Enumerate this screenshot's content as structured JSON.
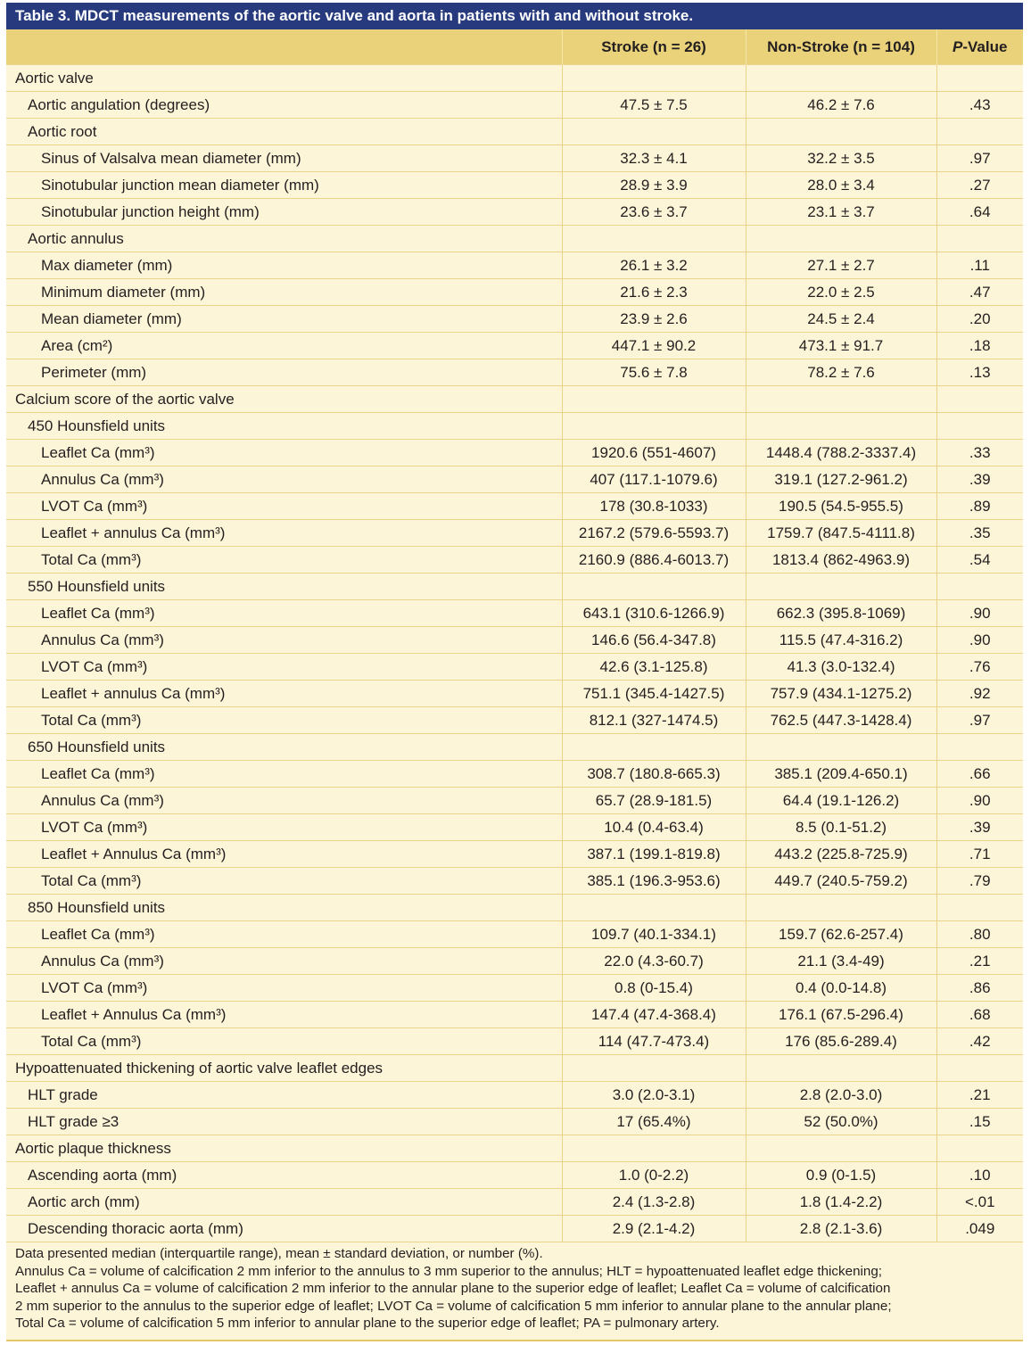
{
  "title": "Table 3. MDCT measurements of the aortic valve and aorta in patients with and without stroke.",
  "header": {
    "col1": "",
    "col2": "Stroke (n = 26)",
    "col3": "Non-Stroke (n = 104)",
    "col4_italic": "P",
    "col4_rest": "-Value"
  },
  "rows": [
    {
      "level": 0,
      "label": "Aortic valve",
      "stroke": "",
      "nonstroke": "",
      "p": ""
    },
    {
      "level": 1,
      "label": "Aortic angulation (degrees)",
      "stroke": "47.5 ± 7.5",
      "nonstroke": "46.2 ± 7.6",
      "p": ".43"
    },
    {
      "level": 1,
      "label": "Aortic root",
      "stroke": "",
      "nonstroke": "",
      "p": ""
    },
    {
      "level": 2,
      "label": "Sinus of Valsalva mean diameter (mm)",
      "stroke": "32.3 ± 4.1",
      "nonstroke": "32.2 ± 3.5",
      "p": ".97"
    },
    {
      "level": 2,
      "label": "Sinotubular junction mean diameter (mm)",
      "stroke": "28.9 ± 3.9",
      "nonstroke": "28.0 ± 3.4",
      "p": ".27"
    },
    {
      "level": 2,
      "label": "Sinotubular junction height (mm)",
      "stroke": "23.6 ± 3.7",
      "nonstroke": "23.1 ± 3.7",
      "p": ".64"
    },
    {
      "level": 1,
      "label": "Aortic annulus",
      "stroke": "",
      "nonstroke": "",
      "p": ""
    },
    {
      "level": 2,
      "label": "Max diameter (mm)",
      "stroke": "26.1 ± 3.2",
      "nonstroke": "27.1 ± 2.7",
      "p": ".11"
    },
    {
      "level": 2,
      "label": "Minimum diameter (mm)",
      "stroke": "21.6 ± 2.3",
      "nonstroke": "22.0 ± 2.5",
      "p": ".47"
    },
    {
      "level": 2,
      "label": "Mean diameter (mm)",
      "stroke": "23.9 ± 2.6",
      "nonstroke": "24.5 ± 2.4",
      "p": ".20"
    },
    {
      "level": 2,
      "label": "Area (cm²)",
      "stroke": "447.1 ± 90.2",
      "nonstroke": "473.1 ± 91.7",
      "p": ".18"
    },
    {
      "level": 2,
      "label": "Perimeter (mm)",
      "stroke": "75.6 ± 7.8",
      "nonstroke": "78.2 ± 7.6",
      "p": ".13"
    },
    {
      "level": 0,
      "label": "Calcium score of the aortic valve",
      "stroke": "",
      "nonstroke": "",
      "p": ""
    },
    {
      "level": 1,
      "label": "450 Hounsfield units",
      "stroke": "",
      "nonstroke": "",
      "p": ""
    },
    {
      "level": 2,
      "label": "Leaflet Ca (mm³)",
      "stroke": "1920.6 (551-4607)",
      "nonstroke": "1448.4 (788.2-3337.4)",
      "p": ".33"
    },
    {
      "level": 2,
      "label": "Annulus Ca (mm³)",
      "stroke": "407 (117.1-1079.6)",
      "nonstroke": "319.1 (127.2-961.2)",
      "p": ".39"
    },
    {
      "level": 2,
      "label": "LVOT Ca (mm³)",
      "stroke": "178 (30.8-1033)",
      "nonstroke": "190.5 (54.5-955.5)",
      "p": ".89"
    },
    {
      "level": 2,
      "label": "Leaflet + annulus Ca (mm³)",
      "stroke": "2167.2 (579.6-5593.7)",
      "nonstroke": "1759.7 (847.5-4111.8)",
      "p": ".35"
    },
    {
      "level": 2,
      "label": "Total Ca (mm³)",
      "stroke": "2160.9 (886.4-6013.7)",
      "nonstroke": "1813.4 (862-4963.9)",
      "p": ".54"
    },
    {
      "level": 1,
      "label": "550 Hounsfield units",
      "stroke": "",
      "nonstroke": "",
      "p": ""
    },
    {
      "level": 2,
      "label": "Leaflet Ca (mm³)",
      "stroke": "643.1 (310.6-1266.9)",
      "nonstroke": "662.3 (395.8-1069)",
      "p": ".90"
    },
    {
      "level": 2,
      "label": "Annulus Ca (mm³)",
      "stroke": "146.6 (56.4-347.8)",
      "nonstroke": "115.5 (47.4-316.2)",
      "p": ".90"
    },
    {
      "level": 2,
      "label": "LVOT Ca (mm³)",
      "stroke": "42.6 (3.1-125.8)",
      "nonstroke": "41.3 (3.0-132.4)",
      "p": ".76"
    },
    {
      "level": 2,
      "label": "Leaflet + annulus Ca (mm³)",
      "stroke": "751.1 (345.4-1427.5)",
      "nonstroke": "757.9 (434.1-1275.2)",
      "p": ".92"
    },
    {
      "level": 2,
      "label": "Total Ca (mm³)",
      "stroke": "812.1 (327-1474.5)",
      "nonstroke": "762.5 (447.3-1428.4)",
      "p": ".97"
    },
    {
      "level": 1,
      "label": "650 Hounsfield units",
      "stroke": "",
      "nonstroke": "",
      "p": ""
    },
    {
      "level": 2,
      "label": "Leaflet Ca (mm³)",
      "stroke": "308.7 (180.8-665.3)",
      "nonstroke": "385.1 (209.4-650.1)",
      "p": ".66"
    },
    {
      "level": 2,
      "label": "Annulus Ca (mm³)",
      "stroke": "65.7 (28.9-181.5)",
      "nonstroke": "64.4 (19.1-126.2)",
      "p": ".90"
    },
    {
      "level": 2,
      "label": "LVOT Ca (mm³)",
      "stroke": "10.4 (0.4-63.4)",
      "nonstroke": "8.5 (0.1-51.2)",
      "p": ".39"
    },
    {
      "level": 2,
      "label": "Leaflet + Annulus Ca (mm³)",
      "stroke": "387.1 (199.1-819.8)",
      "nonstroke": "443.2 (225.8-725.9)",
      "p": ".71"
    },
    {
      "level": 2,
      "label": "Total Ca (mm³)",
      "stroke": "385.1 (196.3-953.6)",
      "nonstroke": "449.7 (240.5-759.2)",
      "p": ".79"
    },
    {
      "level": 1,
      "label": "850 Hounsfield units",
      "stroke": "",
      "nonstroke": "",
      "p": ""
    },
    {
      "level": 2,
      "label": "Leaflet Ca (mm³)",
      "stroke": "109.7 (40.1-334.1)",
      "nonstroke": "159.7 (62.6-257.4)",
      "p": ".80"
    },
    {
      "level": 2,
      "label": "Annulus Ca (mm³)",
      "stroke": "22.0 (4.3-60.7)",
      "nonstroke": "21.1 (3.4-49)",
      "p": ".21"
    },
    {
      "level": 2,
      "label": "LVOT Ca (mm³)",
      "stroke": "0.8 (0-15.4)",
      "nonstroke": "0.4 (0.0-14.8)",
      "p": ".86"
    },
    {
      "level": 2,
      "label": "Leaflet + Annulus Ca (mm³)",
      "stroke": "147.4 (47.4-368.4)",
      "nonstroke": "176.1 (67.5-296.4)",
      "p": ".68"
    },
    {
      "level": 2,
      "label": "Total Ca (mm³)",
      "stroke": "114 (47.7-473.4)",
      "nonstroke": "176 (85.6-289.4)",
      "p": ".42"
    },
    {
      "level": 0,
      "label": "Hypoattenuated thickening of aortic valve leaflet edges",
      "stroke": "",
      "nonstroke": "",
      "p": ""
    },
    {
      "level": 1,
      "label": "HLT grade",
      "stroke": "3.0 (2.0-3.1)",
      "nonstroke": "2.8 (2.0-3.0)",
      "p": ".21"
    },
    {
      "level": 1,
      "label": "HLT grade ≥3",
      "stroke": "17 (65.4%)",
      "nonstroke": "52 (50.0%)",
      "p": ".15"
    },
    {
      "level": 0,
      "label": "Aortic plaque thickness",
      "stroke": "",
      "nonstroke": "",
      "p": ""
    },
    {
      "level": 1,
      "label": "Ascending aorta (mm)",
      "stroke": "1.0 (0-2.2)",
      "nonstroke": "0.9 (0-1.5)",
      "p": ".10"
    },
    {
      "level": 1,
      "label": "Aortic arch (mm)",
      "stroke": "2.4 (1.3-2.8)",
      "nonstroke": "1.8 (1.4-2.2)",
      "p": "<.01"
    },
    {
      "level": 1,
      "label": "Descending thoracic aorta (mm)",
      "stroke": "2.9 (2.1-4.2)",
      "nonstroke": "2.8 (2.1-3.6)",
      "p": ".049"
    }
  ],
  "footnotes": [
    "Data presented median (interquartile range), mean ± standard deviation, or number (%).",
    "Annulus Ca = volume of calcification 2 mm inferior to the annulus to 3 mm superior to the annulus; HLT = hypoattenuated leaflet edge thickening;",
    "Leaflet + annulus Ca = volume of calcification 2 mm inferior to the annular plane to the superior edge of leaflet; Leaflet Ca = volume of calcification",
    "2 mm superior to the annulus to the superior edge of leaflet; LVOT Ca = volume of calcification 5 mm inferior to annular plane to the annular plane;",
    "Total Ca = volume of calcification 5 mm inferior to annular plane to the superior edge of leaflet; PA = pulmonary artery."
  ]
}
